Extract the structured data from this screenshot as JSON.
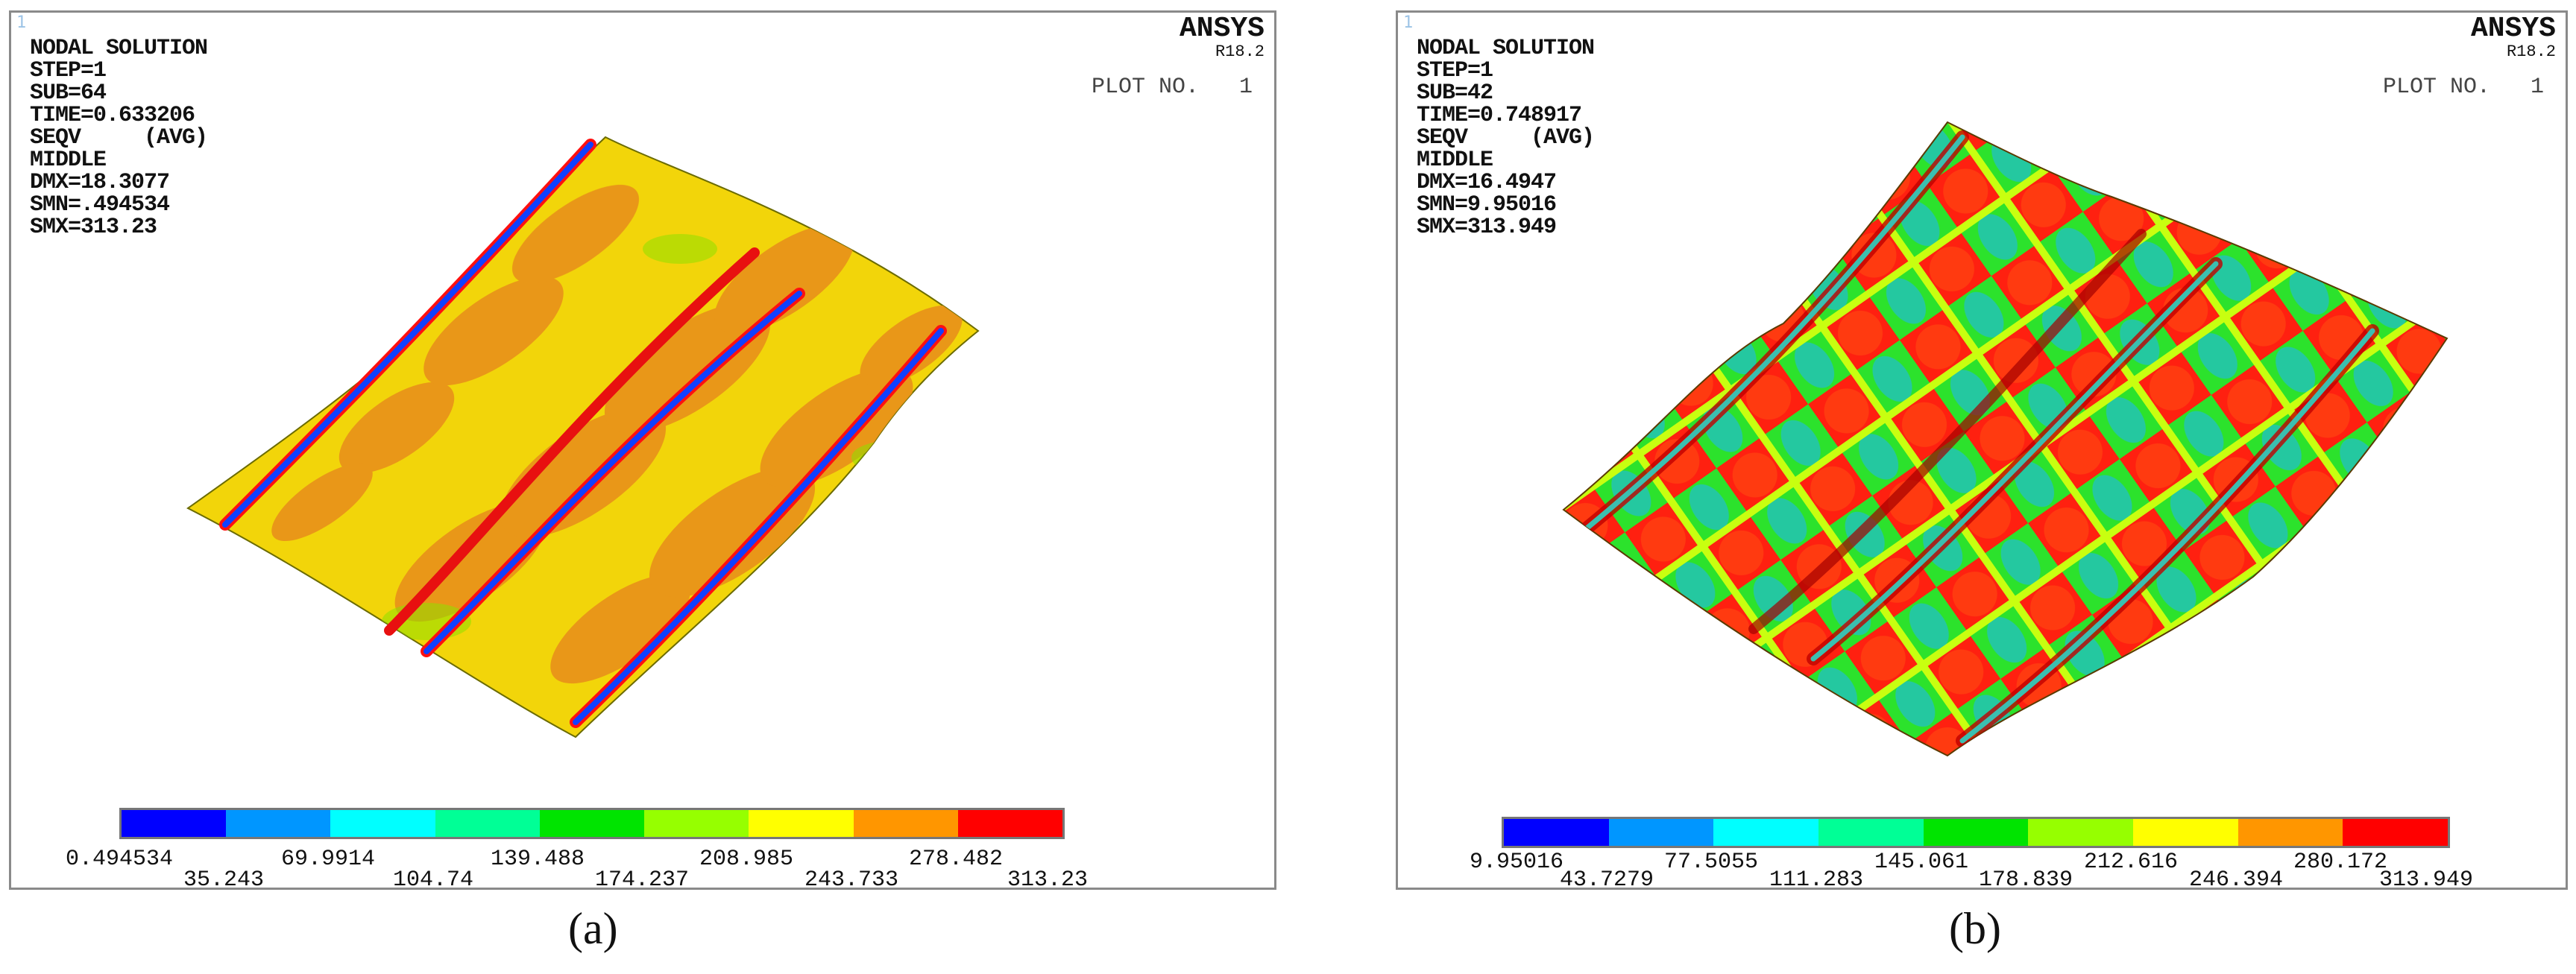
{
  "colors": {
    "contour_bands": [
      "#0000ff",
      "#0096ff",
      "#00ffff",
      "#00ff96",
      "#00e400",
      "#96ff00",
      "#ffff00",
      "#ff9600",
      "#ff0000"
    ]
  },
  "panels": [
    {
      "corner_mark": "1",
      "title": "NODAL SOLUTION",
      "step": "STEP=1",
      "sub": "SUB=64",
      "time": "TIME=0.633206",
      "seqv": "SEQV     (AVG)",
      "layer": "MIDDLE",
      "dmx": "DMX=18.3077",
      "smn": "SMN=.494534",
      "smx": "SMX=313.23",
      "brand": "ANSYS",
      "version": "R18.2",
      "plot_no": "PLOT NO.   1",
      "legend_top": [
        "0.494534",
        "69.9914",
        "139.488",
        "208.985",
        "278.482"
      ],
      "legend_bottom": [
        "35.243",
        "104.74",
        "174.237",
        "243.733",
        "313.23"
      ],
      "caption": "(a)"
    },
    {
      "corner_mark": "1",
      "title": "NODAL SOLUTION",
      "step": "STEP=1",
      "sub": "SUB=42",
      "time": "TIME=0.748917",
      "seqv": "SEQV     (AVG)",
      "layer": "MIDDLE",
      "dmx": "DMX=16.4947",
      "smn": "SMN=9.95016",
      "smx": "SMX=313.949",
      "brand": "ANSYS",
      "version": "R18.2",
      "plot_no": "PLOT NO.   1",
      "legend_top": [
        "9.95016",
        "77.5055",
        "145.061",
        "212.616",
        "280.172"
      ],
      "legend_bottom": [
        "43.7279",
        "111.283",
        "178.839",
        "246.394",
        "313.949"
      ],
      "caption": "(b)"
    }
  ]
}
